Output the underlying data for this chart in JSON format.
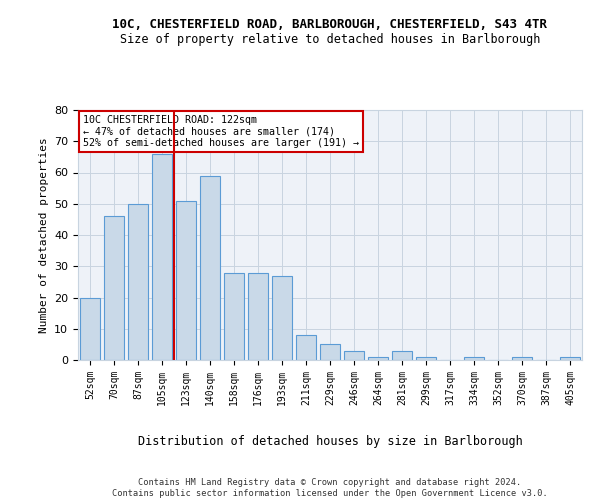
{
  "title1": "10C, CHESTERFIELD ROAD, BARLBOROUGH, CHESTERFIELD, S43 4TR",
  "title2": "Size of property relative to detached houses in Barlborough",
  "xlabel": "Distribution of detached houses by size in Barlborough",
  "ylabel": "Number of detached properties",
  "footer1": "Contains HM Land Registry data © Crown copyright and database right 2024.",
  "footer2": "Contains public sector information licensed under the Open Government Licence v3.0.",
  "categories": [
    "52sqm",
    "70sqm",
    "87sqm",
    "105sqm",
    "123sqm",
    "140sqm",
    "158sqm",
    "176sqm",
    "193sqm",
    "211sqm",
    "229sqm",
    "246sqm",
    "264sqm",
    "281sqm",
    "299sqm",
    "317sqm",
    "334sqm",
    "352sqm",
    "370sqm",
    "387sqm",
    "405sqm"
  ],
  "values": [
    20,
    46,
    50,
    66,
    51,
    59,
    28,
    28,
    27,
    8,
    5,
    3,
    1,
    3,
    1,
    0,
    1,
    0,
    1,
    0,
    1
  ],
  "bar_color": "#c9d9e8",
  "bar_edge_color": "#5b9bd5",
  "grid_color": "#c8d4e0",
  "background_color": "#eef2f8",
  "property_line_color": "#cc0000",
  "annotation_text": "10C CHESTERFIELD ROAD: 122sqm\n← 47% of detached houses are smaller (174)\n52% of semi-detached houses are larger (191) →",
  "annotation_box_color": "#ffffff",
  "annotation_border_color": "#cc0000",
  "ylim": [
    0,
    80
  ],
  "yticks": [
    0,
    10,
    20,
    30,
    40,
    50,
    60,
    70,
    80
  ]
}
